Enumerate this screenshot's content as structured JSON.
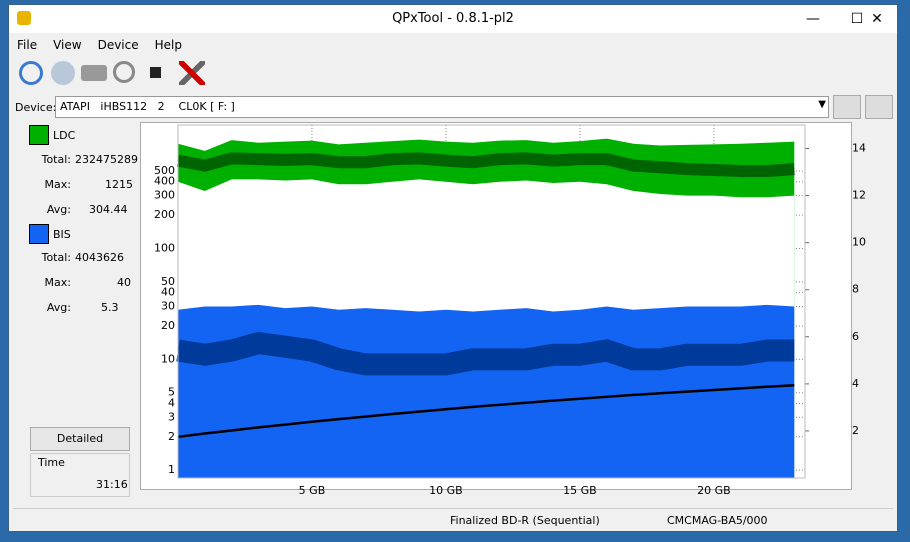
{
  "window": {
    "title": "QPxTool - 0.8.1-pl2",
    "menu": [
      "File",
      "View",
      "Device",
      "Help"
    ]
  },
  "device": {
    "label": "Device:",
    "value": "ATAPI   iHBS112   2    CL0K [ F: ]"
  },
  "panel": {
    "ldc": {
      "label": "LDC",
      "total_label": "Total:",
      "total": 232475289,
      "max_label": "Max:",
      "max": 1215,
      "avg_label": "Avg:",
      "avg": 304.44
    },
    "bis": {
      "label": "BIS",
      "total_label": "Total:",
      "total": 4043626,
      "max_label": "Max:",
      "max": 40,
      "avg_label": "Avg:",
      "avg": 5.3
    },
    "detailed": "Detailed",
    "time_label": "Time",
    "time": "31:16"
  },
  "status": {
    "disc": "Finalized BD-R (Sequential)",
    "media": "CMCMAG-BA5/000"
  },
  "chart": {
    "type": "area",
    "log_y": true,
    "x": [
      0,
      1,
      2,
      3,
      4,
      5,
      6,
      7,
      8,
      9,
      10,
      11,
      12,
      13,
      14,
      15,
      16,
      17,
      18,
      19,
      20,
      21,
      22,
      23
    ],
    "xlim": [
      0,
      23.4
    ],
    "xticks": [
      {
        "value": 5,
        "label": "5 GB"
      },
      {
        "value": 10,
        "label": "10 GB"
      },
      {
        "value": 15,
        "label": "15 GB"
      },
      {
        "value": 20,
        "label": "20 GB"
      }
    ],
    "ylim": [
      0.85,
      1300
    ],
    "yticks": [
      1,
      2,
      3,
      4,
      5,
      10,
      20,
      30,
      40,
      50,
      100,
      200,
      300,
      400,
      500
    ],
    "y2lim": [
      0,
      15
    ],
    "y2ticks": [
      2,
      4,
      6,
      8,
      10,
      12,
      14
    ],
    "ldc": {
      "color": "#00b000",
      "avg_color": "#006400",
      "max": [
        880,
        760,
        950,
        900,
        920,
        940,
        870,
        900,
        930,
        960,
        920,
        900,
        940,
        950,
        900,
        930,
        980,
        880,
        850,
        860,
        870,
        880,
        900,
        920
      ],
      "avg": [
        620,
        560,
        650,
        640,
        630,
        640,
        600,
        600,
        640,
        650,
        620,
        600,
        640,
        650,
        620,
        640,
        640,
        560,
        540,
        520,
        510,
        500,
        500,
        520
      ],
      "min": [
        400,
        330,
        420,
        420,
        410,
        420,
        380,
        380,
        400,
        420,
        400,
        380,
        400,
        410,
        390,
        400,
        380,
        330,
        310,
        300,
        300,
        290,
        290,
        300
      ]
    },
    "bis": {
      "color": "#1464f4",
      "avg_color": "#003a9a",
      "max": [
        28,
        30,
        30,
        31,
        29,
        30,
        28,
        29,
        28,
        27,
        28,
        27,
        28,
        29,
        27,
        28,
        30,
        28,
        29,
        30,
        30,
        30,
        31,
        30
      ],
      "avg": [
        12,
        11,
        12,
        14,
        13,
        12,
        10,
        9,
        9,
        9,
        9,
        10,
        10,
        10,
        11,
        11,
        12,
        10,
        10,
        11,
        11,
        11,
        12,
        12
      ]
    },
    "speed": {
      "color": "#000000",
      "axis": "y2",
      "values": [
        1.75,
        1.89,
        2.02,
        2.15,
        2.27,
        2.39,
        2.5,
        2.61,
        2.72,
        2.82,
        2.92,
        3.02,
        3.11,
        3.2,
        3.29,
        3.37,
        3.45,
        3.53,
        3.6,
        3.67,
        3.74,
        3.81,
        3.88,
        3.94
      ]
    }
  }
}
